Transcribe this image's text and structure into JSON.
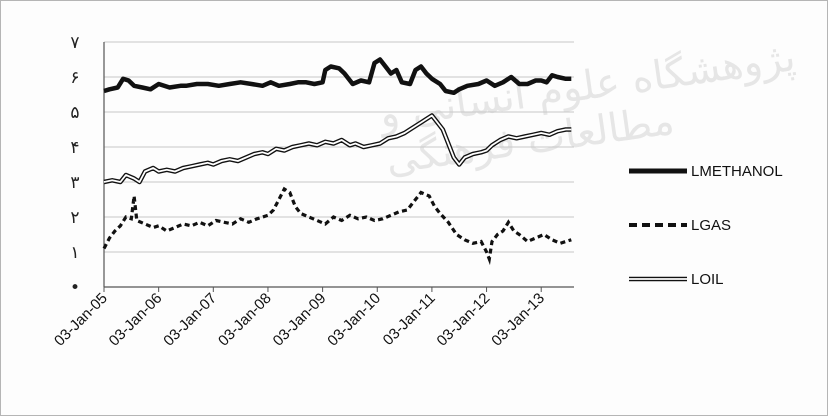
{
  "watermark": {
    "text": "پژوهشگاه علوم انسانی و مطالعات فرهنگی"
  },
  "chart_data": {
    "type": "line",
    "title": "",
    "xlabel": "",
    "ylabel": "",
    "ylim": [
      0,
      7
    ],
    "yticks": [
      {
        "v": 0,
        "label": "•"
      },
      {
        "v": 1,
        "label": "۱"
      },
      {
        "v": 2,
        "label": "۲"
      },
      {
        "v": 3,
        "label": "۳"
      },
      {
        "v": 4,
        "label": "۴"
      },
      {
        "v": 5,
        "label": "۵"
      },
      {
        "v": 6,
        "label": "۶"
      },
      {
        "v": 7,
        "label": "۷"
      }
    ],
    "xticks": [
      {
        "t": 2005.0,
        "label": "03-Jan-05"
      },
      {
        "t": 2006.0,
        "label": "03-Jan-06"
      },
      {
        "t": 2007.0,
        "label": "03-Jan-07"
      },
      {
        "t": 2008.0,
        "label": "03-Jan-08"
      },
      {
        "t": 2009.0,
        "label": "03-Jan-09"
      },
      {
        "t": 2010.0,
        "label": "03-Jan-10"
      },
      {
        "t": 2011.0,
        "label": "03-Jan-11"
      },
      {
        "t": 2012.0,
        "label": "03-Jan-12"
      },
      {
        "t": 2013.0,
        "label": "03-Jan-13"
      }
    ],
    "xlim": [
      2005.0,
      2013.6
    ],
    "grid": true,
    "legend_position": "right",
    "series": [
      {
        "name": "LMETHANOL",
        "style": "thick",
        "color": "#111111",
        "points": [
          [
            2005.0,
            5.6
          ],
          [
            2005.1,
            5.65
          ],
          [
            2005.25,
            5.7
          ],
          [
            2005.35,
            5.95
          ],
          [
            2005.45,
            5.9
          ],
          [
            2005.55,
            5.75
          ],
          [
            2005.7,
            5.7
          ],
          [
            2005.85,
            5.65
          ],
          [
            2006.0,
            5.8
          ],
          [
            2006.2,
            5.7
          ],
          [
            2006.4,
            5.75
          ],
          [
            2006.5,
            5.75
          ],
          [
            2006.7,
            5.8
          ],
          [
            2006.9,
            5.8
          ],
          [
            2007.1,
            5.75
          ],
          [
            2007.3,
            5.8
          ],
          [
            2007.5,
            5.85
          ],
          [
            2007.7,
            5.8
          ],
          [
            2007.9,
            5.75
          ],
          [
            2008.05,
            5.85
          ],
          [
            2008.2,
            5.75
          ],
          [
            2008.4,
            5.8
          ],
          [
            2008.55,
            5.85
          ],
          [
            2008.7,
            5.85
          ],
          [
            2008.85,
            5.8
          ],
          [
            2009.0,
            5.85
          ],
          [
            2009.05,
            6.2
          ],
          [
            2009.15,
            6.3
          ],
          [
            2009.3,
            6.25
          ],
          [
            2009.4,
            6.1
          ],
          [
            2009.55,
            5.8
          ],
          [
            2009.7,
            5.9
          ],
          [
            2009.85,
            5.85
          ],
          [
            2009.95,
            6.4
          ],
          [
            2010.05,
            6.5
          ],
          [
            2010.15,
            6.3
          ],
          [
            2010.25,
            6.1
          ],
          [
            2010.35,
            6.2
          ],
          [
            2010.45,
            5.85
          ],
          [
            2010.6,
            5.8
          ],
          [
            2010.7,
            6.2
          ],
          [
            2010.8,
            6.3
          ],
          [
            2010.9,
            6.1
          ],
          [
            2011.0,
            5.95
          ],
          [
            2011.15,
            5.8
          ],
          [
            2011.25,
            5.6
          ],
          [
            2011.4,
            5.55
          ],
          [
            2011.5,
            5.65
          ],
          [
            2011.65,
            5.75
          ],
          [
            2011.85,
            5.8
          ],
          [
            2012.0,
            5.9
          ],
          [
            2012.15,
            5.75
          ],
          [
            2012.3,
            5.85
          ],
          [
            2012.45,
            6.0
          ],
          [
            2012.6,
            5.8
          ],
          [
            2012.75,
            5.8
          ],
          [
            2012.9,
            5.9
          ],
          [
            2013.0,
            5.9
          ],
          [
            2013.1,
            5.85
          ],
          [
            2013.2,
            6.05
          ],
          [
            2013.3,
            6.0
          ],
          [
            2013.45,
            5.95
          ],
          [
            2013.55,
            5.95
          ]
        ]
      },
      {
        "name": "LGAS",
        "style": "dashed",
        "color": "#111111",
        "points": [
          [
            2005.0,
            1.1
          ],
          [
            2005.1,
            1.4
          ],
          [
            2005.2,
            1.6
          ],
          [
            2005.3,
            1.75
          ],
          [
            2005.4,
            2.0
          ],
          [
            2005.5,
            1.95
          ],
          [
            2005.55,
            2.6
          ],
          [
            2005.6,
            1.9
          ],
          [
            2005.75,
            1.8
          ],
          [
            2005.9,
            1.7
          ],
          [
            2006.0,
            1.75
          ],
          [
            2006.15,
            1.6
          ],
          [
            2006.3,
            1.7
          ],
          [
            2006.45,
            1.8
          ],
          [
            2006.6,
            1.75
          ],
          [
            2006.75,
            1.85
          ],
          [
            2006.9,
            1.75
          ],
          [
            2007.05,
            1.9
          ],
          [
            2007.2,
            1.85
          ],
          [
            2007.35,
            1.8
          ],
          [
            2007.5,
            1.95
          ],
          [
            2007.65,
            1.85
          ],
          [
            2007.8,
            1.95
          ],
          [
            2008.0,
            2.05
          ],
          [
            2008.1,
            2.2
          ],
          [
            2008.2,
            2.5
          ],
          [
            2008.3,
            2.8
          ],
          [
            2008.4,
            2.7
          ],
          [
            2008.5,
            2.3
          ],
          [
            2008.6,
            2.1
          ],
          [
            2008.75,
            2.0
          ],
          [
            2008.9,
            1.9
          ],
          [
            2009.05,
            1.8
          ],
          [
            2009.2,
            2.0
          ],
          [
            2009.35,
            1.9
          ],
          [
            2009.5,
            2.05
          ],
          [
            2009.65,
            1.95
          ],
          [
            2009.8,
            2.0
          ],
          [
            2009.95,
            1.9
          ],
          [
            2010.1,
            1.95
          ],
          [
            2010.25,
            2.05
          ],
          [
            2010.4,
            2.15
          ],
          [
            2010.55,
            2.2
          ],
          [
            2010.7,
            2.5
          ],
          [
            2010.8,
            2.7
          ],
          [
            2010.95,
            2.6
          ],
          [
            2011.05,
            2.3
          ],
          [
            2011.15,
            2.1
          ],
          [
            2011.3,
            1.85
          ],
          [
            2011.45,
            1.5
          ],
          [
            2011.6,
            1.35
          ],
          [
            2011.75,
            1.25
          ],
          [
            2011.9,
            1.3
          ],
          [
            2012.0,
            1.0
          ],
          [
            2012.05,
            0.8
          ],
          [
            2012.1,
            1.3
          ],
          [
            2012.2,
            1.5
          ],
          [
            2012.3,
            1.6
          ],
          [
            2012.4,
            1.85
          ],
          [
            2012.5,
            1.6
          ],
          [
            2012.6,
            1.5
          ],
          [
            2012.75,
            1.3
          ],
          [
            2012.9,
            1.4
          ],
          [
            2013.05,
            1.5
          ],
          [
            2013.2,
            1.35
          ],
          [
            2013.35,
            1.25
          ],
          [
            2013.45,
            1.3
          ],
          [
            2013.55,
            1.35
          ]
        ]
      },
      {
        "name": "LOIL",
        "style": "double",
        "color": "#111111",
        "points": [
          [
            2005.0,
            3.0
          ],
          [
            2005.15,
            3.05
          ],
          [
            2005.3,
            3.0
          ],
          [
            2005.4,
            3.2
          ],
          [
            2005.55,
            3.1
          ],
          [
            2005.65,
            3.0
          ],
          [
            2005.75,
            3.3
          ],
          [
            2005.9,
            3.4
          ],
          [
            2006.0,
            3.3
          ],
          [
            2006.15,
            3.35
          ],
          [
            2006.3,
            3.3
          ],
          [
            2006.45,
            3.4
          ],
          [
            2006.6,
            3.45
          ],
          [
            2006.75,
            3.5
          ],
          [
            2006.9,
            3.55
          ],
          [
            2007.0,
            3.5
          ],
          [
            2007.15,
            3.6
          ],
          [
            2007.3,
            3.65
          ],
          [
            2007.45,
            3.6
          ],
          [
            2007.6,
            3.7
          ],
          [
            2007.75,
            3.8
          ],
          [
            2007.9,
            3.85
          ],
          [
            2008.0,
            3.8
          ],
          [
            2008.15,
            3.95
          ],
          [
            2008.3,
            3.9
          ],
          [
            2008.45,
            4.0
          ],
          [
            2008.6,
            4.05
          ],
          [
            2008.75,
            4.1
          ],
          [
            2008.9,
            4.05
          ],
          [
            2009.05,
            4.15
          ],
          [
            2009.2,
            4.1
          ],
          [
            2009.35,
            4.2
          ],
          [
            2009.5,
            4.05
          ],
          [
            2009.6,
            4.1
          ],
          [
            2009.75,
            4.0
          ],
          [
            2009.9,
            4.05
          ],
          [
            2010.05,
            4.1
          ],
          [
            2010.2,
            4.25
          ],
          [
            2010.35,
            4.3
          ],
          [
            2010.5,
            4.4
          ],
          [
            2010.6,
            4.5
          ],
          [
            2010.7,
            4.6
          ],
          [
            2010.8,
            4.7
          ],
          [
            2010.9,
            4.8
          ],
          [
            2011.0,
            4.9
          ],
          [
            2011.1,
            4.7
          ],
          [
            2011.2,
            4.5
          ],
          [
            2011.3,
            4.1
          ],
          [
            2011.4,
            3.7
          ],
          [
            2011.5,
            3.5
          ],
          [
            2011.6,
            3.7
          ],
          [
            2011.75,
            3.8
          ],
          [
            2011.9,
            3.85
          ],
          [
            2012.0,
            3.9
          ],
          [
            2012.1,
            4.05
          ],
          [
            2012.25,
            4.2
          ],
          [
            2012.4,
            4.3
          ],
          [
            2012.55,
            4.25
          ],
          [
            2012.7,
            4.3
          ],
          [
            2012.85,
            4.35
          ],
          [
            2013.0,
            4.4
          ],
          [
            2013.15,
            4.35
          ],
          [
            2013.3,
            4.45
          ],
          [
            2013.45,
            4.5
          ],
          [
            2013.55,
            4.5
          ]
        ]
      }
    ]
  }
}
